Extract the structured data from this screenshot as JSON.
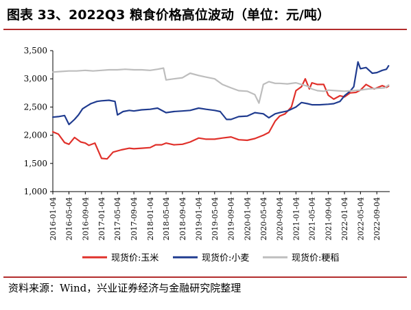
{
  "title": "图表 33、2022Q3 粮食价格高位波动（单位：元/吨）",
  "source": "资料来源：Wind，兴业证券经济与金融研究院整理",
  "chart_data": {
    "type": "line",
    "ylim": [
      1000,
      3500
    ],
    "yticks": [
      1000,
      1500,
      2000,
      2500,
      3000,
      3500
    ],
    "ytick_labels": [
      "1,000",
      "1,500",
      "2,000",
      "2,500",
      "3,000",
      "3,500"
    ],
    "xlim": [
      "2016-01-04",
      "2022-12-10"
    ],
    "xticks": [
      "2016-01-04",
      "2016-05-04",
      "2016-09-04",
      "2017-01-04",
      "2017-05-04",
      "2017-09-04",
      "2018-01-04",
      "2018-05-04",
      "2018-09-04",
      "2019-01-04",
      "2019-05-04",
      "2019-09-04",
      "2020-01-04",
      "2020-05-04",
      "2020-09-04",
      "2021-01-04",
      "2021-05-04",
      "2021-09-04",
      "2022-01-04",
      "2022-05-04",
      "2022-09-04"
    ],
    "legend_position": "bottom",
    "series": [
      {
        "name": "现货价:玉米",
        "color": "#e0302a",
        "x": [
          "2016-01-04",
          "2016-02-15",
          "2016-04-01",
          "2016-05-04",
          "2016-06-15",
          "2016-08-01",
          "2016-09-04",
          "2016-10-01",
          "2016-11-15",
          "2017-01-04",
          "2017-02-15",
          "2017-04-01",
          "2017-06-01",
          "2017-08-01",
          "2017-09-04",
          "2017-11-01",
          "2018-01-04",
          "2018-02-15",
          "2018-04-01",
          "2018-05-04",
          "2018-07-01",
          "2018-09-04",
          "2018-11-01",
          "2019-01-04",
          "2019-03-01",
          "2019-05-04",
          "2019-07-01",
          "2019-09-04",
          "2019-11-01",
          "2020-01-04",
          "2020-03-01",
          "2020-05-04",
          "2020-06-15",
          "2020-08-01",
          "2020-09-04",
          "2020-10-15",
          "2020-12-01",
          "2021-01-04",
          "2021-02-15",
          "2021-03-15",
          "2021-04-15",
          "2021-05-04",
          "2021-06-15",
          "2021-08-01",
          "2021-09-04",
          "2021-10-15",
          "2021-12-01",
          "2022-01-04",
          "2022-02-15",
          "2022-04-01",
          "2022-05-04",
          "2022-06-15",
          "2022-07-15",
          "2022-08-15",
          "2022-09-04",
          "2022-10-15",
          "2022-11-15",
          "2022-12-01"
        ],
        "values": [
          2060,
          2020,
          1870,
          1840,
          1960,
          1880,
          1860,
          1820,
          1860,
          1590,
          1580,
          1700,
          1740,
          1770,
          1760,
          1770,
          1780,
          1830,
          1830,
          1860,
          1830,
          1840,
          1880,
          1950,
          1930,
          1930,
          1950,
          1970,
          1920,
          1910,
          1940,
          2000,
          2050,
          2250,
          2340,
          2380,
          2500,
          2790,
          2860,
          3000,
          2820,
          2930,
          2900,
          2900,
          2710,
          2640,
          2700,
          2680,
          2750,
          2760,
          2800,
          2900,
          2860,
          2820,
          2840,
          2880,
          2850,
          2870
        ]
      },
      {
        "name": "现货价:小麦",
        "color": "#1f3b8f",
        "x": [
          "2016-01-04",
          "2016-02-15",
          "2016-04-01",
          "2016-05-04",
          "2016-06-15",
          "2016-07-15",
          "2016-08-15",
          "2016-09-04",
          "2016-10-15",
          "2016-12-01",
          "2017-01-04",
          "2017-03-01",
          "2017-04-15",
          "2017-05-04",
          "2017-06-15",
          "2017-08-01",
          "2017-09-04",
          "2017-11-01",
          "2018-01-04",
          "2018-03-01",
          "2018-05-04",
          "2018-07-01",
          "2018-09-04",
          "2018-11-01",
          "2019-01-04",
          "2019-03-01",
          "2019-05-04",
          "2019-06-15",
          "2019-08-01",
          "2019-09-04",
          "2019-11-01",
          "2020-01-04",
          "2020-03-01",
          "2020-05-04",
          "2020-06-15",
          "2020-08-01",
          "2020-09-04",
          "2020-11-01",
          "2021-01-04",
          "2021-02-15",
          "2021-04-01",
          "2021-05-04",
          "2021-07-01",
          "2021-09-04",
          "2021-10-15",
          "2021-12-01",
          "2022-01-04",
          "2022-02-15",
          "2022-03-15",
          "2022-04-15",
          "2022-05-04",
          "2022-06-15",
          "2022-08-01",
          "2022-09-04",
          "2022-10-15",
          "2022-11-15",
          "2022-12-01"
        ],
        "values": [
          2320,
          2330,
          2350,
          2190,
          2280,
          2360,
          2470,
          2500,
          2560,
          2600,
          2610,
          2620,
          2600,
          2360,
          2420,
          2440,
          2430,
          2450,
          2460,
          2480,
          2400,
          2420,
          2430,
          2440,
          2480,
          2460,
          2440,
          2420,
          2280,
          2280,
          2330,
          2340,
          2400,
          2380,
          2310,
          2380,
          2400,
          2430,
          2500,
          2580,
          2560,
          2540,
          2540,
          2550,
          2560,
          2600,
          2700,
          2780,
          2860,
          3300,
          3180,
          3200,
          3100,
          3110,
          3150,
          3170,
          3230
        ]
      },
      {
        "name": "现货价:粳稻",
        "color": "#bdbdbd",
        "x": [
          "2016-01-04",
          "2016-03-01",
          "2016-05-04",
          "2016-07-01",
          "2016-09-04",
          "2016-11-01",
          "2017-01-04",
          "2017-03-01",
          "2017-05-04",
          "2017-07-01",
          "2017-09-04",
          "2017-11-01",
          "2018-01-04",
          "2018-03-01",
          "2018-04-15",
          "2018-05-04",
          "2018-07-01",
          "2018-09-04",
          "2018-11-01",
          "2019-01-04",
          "2019-03-01",
          "2019-05-04",
          "2019-07-01",
          "2019-09-04",
          "2019-11-01",
          "2020-01-04",
          "2020-03-01",
          "2020-04-01",
          "2020-05-04",
          "2020-06-15",
          "2020-08-01",
          "2020-09-04",
          "2020-11-01",
          "2021-01-04",
          "2021-02-15",
          "2021-04-01",
          "2021-05-04",
          "2021-06-15",
          "2021-08-01",
          "2021-09-04",
          "2021-11-01",
          "2022-01-04",
          "2022-03-01",
          "2022-05-04",
          "2022-07-01",
          "2022-09-04",
          "2022-11-01",
          "2022-12-01"
        ],
        "values": [
          3120,
          3130,
          3140,
          3140,
          3150,
          3140,
          3150,
          3160,
          3160,
          3170,
          3160,
          3160,
          3150,
          3170,
          3190,
          2980,
          3000,
          3020,
          3100,
          3060,
          3030,
          3000,
          2900,
          2840,
          2790,
          2780,
          2720,
          2570,
          2900,
          2950,
          2920,
          2920,
          2910,
          2930,
          2900,
          2870,
          2820,
          2790,
          2780,
          2800,
          2790,
          2780,
          2790,
          2800,
          2820,
          2830,
          2840,
          2890
        ]
      }
    ]
  }
}
